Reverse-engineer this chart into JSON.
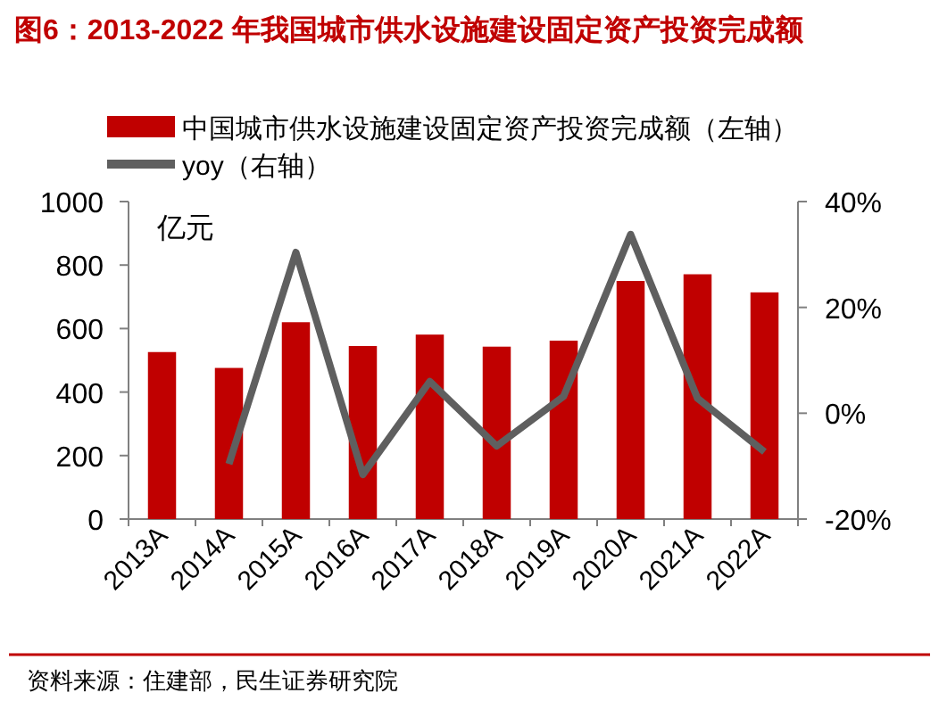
{
  "chart_data": {
    "type": "bar",
    "title": "图6：2013-2022 年我国城市供水设施建设固定资产投资完成额",
    "ylabel": "亿元",
    "categories": [
      "2013A",
      "2014A",
      "2015A",
      "2016A",
      "2017A",
      "2018A",
      "2019A",
      "2020A",
      "2021A",
      "2022A"
    ],
    "series": [
      {
        "name": "中国城市供水设施建设固定资产投资完成额（左轴）",
        "color": "#c00000",
        "values": [
          526,
          476,
          620,
          545,
          581,
          543,
          562,
          750,
          771,
          714
        ]
      },
      {
        "name": "yoy（右轴）",
        "type": "line",
        "axis": "y2",
        "color": "#5f5f5f",
        "values": [
          null,
          -9.6,
          30.4,
          -11.6,
          6.0,
          -6.2,
          3.2,
          33.8,
          2.8,
          -7.3
        ]
      }
    ],
    "ylim": [
      0,
      1000
    ],
    "yticks": [
      0,
      200,
      400,
      600,
      800,
      1000
    ],
    "y2lim": [
      -20,
      40
    ],
    "y2ticks": [
      {
        "value": -20,
        "label": "-20%"
      },
      {
        "value": 0,
        "label": "0%"
      },
      {
        "value": 20,
        "label": "20%"
      },
      {
        "value": 40,
        "label": "40%"
      }
    ],
    "legend": "top",
    "grid": false,
    "marker": "none",
    "annotations": [
      "资料来源：住建部，民生证券研究院"
    ]
  }
}
